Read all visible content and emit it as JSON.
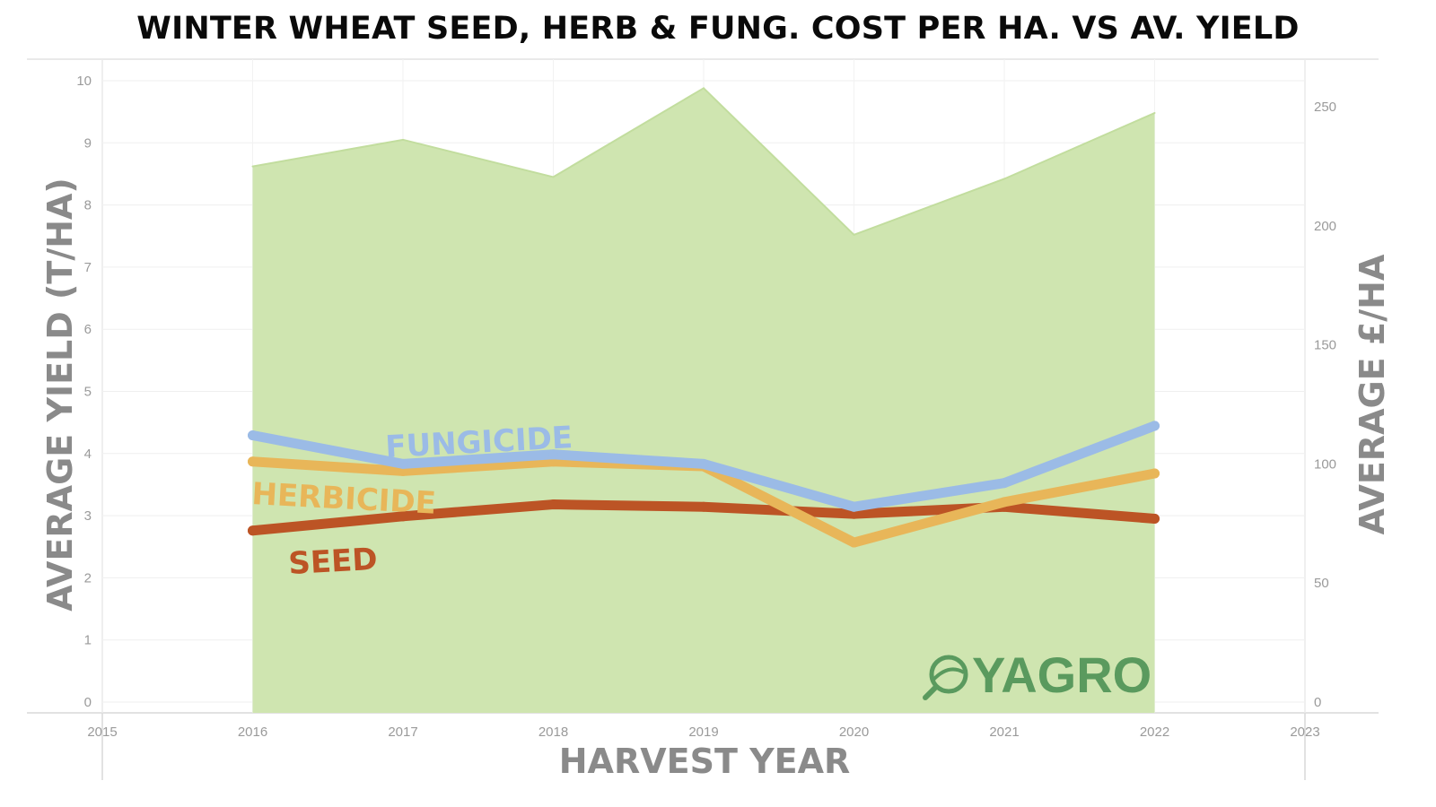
{
  "chart_data": {
    "type": "area",
    "title": "WINTER WHEAT SEED, HERB & FUNG. COST PER HA. VS AV. YIELD",
    "xlabel": "HARVEST YEAR",
    "ylabel_left": "AVERAGE YIELD (T/HA)",
    "ylabel_right": "AVERAGE  £/HA",
    "x_ticks": [
      "2015",
      "2016",
      "2017",
      "2018",
      "2019",
      "2020",
      "2021",
      "2022",
      "2023"
    ],
    "xlim": [
      2015,
      2023
    ],
    "ylim_left": [
      0,
      10
    ],
    "y_left_ticks": [
      "0",
      "1",
      "2",
      "3",
      "4",
      "5",
      "6",
      "7",
      "8",
      "9",
      "10"
    ],
    "ylim_right": [
      0,
      260
    ],
    "y_right_ticks": [
      "0",
      "50",
      "100",
      "150",
      "200",
      "250"
    ],
    "x": [
      2016,
      2017,
      2018,
      2019,
      2020,
      2021,
      2022
    ],
    "area_series": {
      "axis": "left",
      "color": "#cfe5b0",
      "edge_color": "#c2dd9e",
      "values": [
        8.62,
        9.05,
        8.45,
        9.88,
        7.52,
        8.42,
        9.48
      ]
    },
    "series": [
      {
        "name": "FUNGICIDE",
        "axis": "right",
        "color": "#9bbbe6",
        "values": [
          112,
          100,
          104,
          100,
          82,
          92,
          116
        ]
      },
      {
        "name": "HERBICIDE",
        "axis": "right",
        "color": "#e8b659",
        "values": [
          101,
          97,
          101,
          99,
          67,
          84,
          96
        ]
      },
      {
        "name": "SEED",
        "axis": "right",
        "color": "#bc5425",
        "values": [
          72,
          78,
          83,
          82,
          79,
          82,
          77
        ]
      }
    ],
    "grid": true,
    "brand_text": "YAGRO",
    "brand_color": "#5a9a5e"
  }
}
